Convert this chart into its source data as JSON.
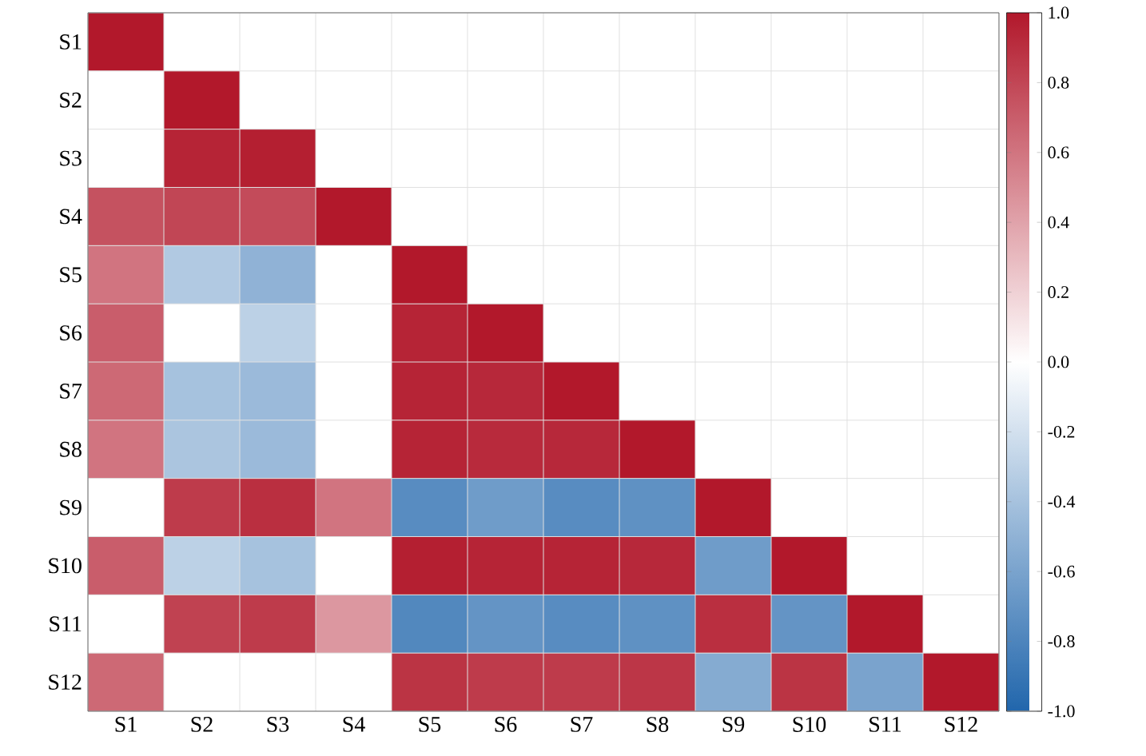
{
  "chart_data": {
    "type": "heatmap",
    "categories": [
      "S1",
      "S2",
      "S3",
      "S4",
      "S5",
      "S6",
      "S7",
      "S8",
      "S9",
      "S10",
      "S11",
      "S12"
    ],
    "y_categories": [
      "S1",
      "S2",
      "S3",
      "S4",
      "S5",
      "S6",
      "S7",
      "S8",
      "S9",
      "S10",
      "S11",
      "S12"
    ],
    "cells": [
      [
        1,
        null,
        null,
        null,
        null,
        null,
        null,
        null,
        null,
        null,
        null,
        null
      ],
      [
        0,
        1,
        null,
        null,
        null,
        null,
        null,
        null,
        null,
        null,
        null,
        null
      ],
      [
        0,
        0.95,
        0.97,
        null,
        null,
        null,
        null,
        null,
        null,
        null,
        null,
        null
      ],
      [
        0.75,
        0.8,
        0.78,
        1,
        null,
        null,
        null,
        null,
        null,
        null,
        null,
        null
      ],
      [
        0.6,
        -0.35,
        -0.5,
        0,
        1,
        null,
        null,
        null,
        null,
        null,
        null,
        null
      ],
      [
        0.7,
        0,
        -0.3,
        0,
        0.95,
        1,
        null,
        null,
        null,
        null,
        null,
        null
      ],
      [
        0.65,
        -0.4,
        -0.45,
        0,
        0.95,
        0.93,
        1,
        null,
        null,
        null,
        null,
        null
      ],
      [
        0.6,
        -0.38,
        -0.45,
        0,
        0.95,
        0.92,
        0.93,
        1,
        null,
        null,
        null,
        null
      ],
      [
        0,
        0.85,
        0.9,
        0.6,
        -0.75,
        -0.65,
        -0.75,
        -0.72,
        1,
        null,
        null,
        null
      ],
      [
        0.7,
        -0.3,
        -0.4,
        0,
        0.97,
        0.95,
        0.95,
        0.93,
        -0.65,
        1,
        null,
        null
      ],
      [
        0,
        0.82,
        0.85,
        0.45,
        -0.78,
        -0.7,
        -0.75,
        -0.72,
        0.9,
        -0.7,
        1,
        null
      ],
      [
        0.65,
        0,
        0,
        0,
        0.88,
        0.85,
        0.85,
        0.87,
        -0.55,
        0.88,
        -0.6,
        1
      ]
    ],
    "clim": [
      -1,
      1
    ],
    "cticks": [
      {
        "value": -1,
        "label": "-1.0"
      },
      {
        "value": -0.8,
        "label": "-0.8"
      },
      {
        "value": -0.6,
        "label": "-0.6"
      },
      {
        "value": -0.4,
        "label": "-0.4"
      },
      {
        "value": -0.2,
        "label": "-0.2"
      },
      {
        "value": 0,
        "label": "0.0"
      },
      {
        "value": 0.2,
        "label": "0.2"
      },
      {
        "value": 0.4,
        "label": "0.4"
      },
      {
        "value": 0.6,
        "label": "0.6"
      },
      {
        "value": 0.8,
        "label": "0.8"
      },
      {
        "value": 1,
        "label": "1.0"
      }
    ],
    "grid": true
  }
}
